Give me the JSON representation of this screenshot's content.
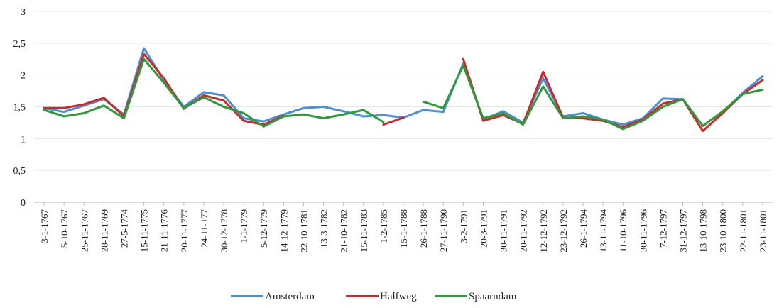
{
  "chart_data": {
    "type": "line",
    "title": "",
    "xlabel": "",
    "ylabel": "",
    "ylim": [
      0,
      3
    ],
    "y_ticks": [
      "0",
      "0,5",
      "1",
      "1,5",
      "2",
      "2,5",
      "3"
    ],
    "y_tick_values": [
      0,
      0.5,
      1,
      1.5,
      2,
      2.5,
      3
    ],
    "grid": true,
    "legend_position": "bottom",
    "categories": [
      "3-1-1767",
      "5-10-1767",
      "25-11-1767",
      "28-11-1769",
      "27-5-1774",
      "15-11-1775",
      "21-11-1776",
      "20-11-1777",
      "24-11-177",
      "30-12-1778",
      "1-1-1779",
      "5-12-1779",
      "14-12-1779",
      "22-10-1781",
      "13-3-1782",
      "21-10-1782",
      "15-11-1783",
      "1-2-1785",
      "15-1-1788",
      "26-1-1788",
      "27-11-1790",
      "3-2-1791",
      "20-3-1791",
      "30-11-1791",
      "20-11-1792",
      "12-12-1792",
      "23-12-1792",
      "26-1-1794",
      "13-11-1794",
      "11-10-1796",
      "30-11-1796",
      "7-12-1797",
      "31-12-1797",
      "13-10-1798",
      "23-10-1800",
      "22-11-1801",
      "23-11-1801"
    ],
    "series": [
      {
        "name": "Amsterdam",
        "color": "#4a8fd6",
        "values": [
          1.48,
          1.42,
          1.52,
          1.62,
          1.38,
          2.42,
          1.92,
          1.5,
          1.73,
          1.68,
          1.32,
          1.27,
          1.38,
          1.48,
          1.5,
          1.43,
          1.35,
          1.37,
          1.33,
          1.45,
          1.42,
          2.18,
          1.3,
          1.43,
          1.25,
          1.95,
          1.35,
          1.4,
          1.3,
          1.22,
          1.32,
          1.63,
          1.62,
          1.2,
          1.42,
          1.72,
          1.98
        ]
      },
      {
        "name": "Halfweg",
        "color": "#cc2a2a",
        "values": [
          1.48,
          1.48,
          1.54,
          1.64,
          1.35,
          2.33,
          1.95,
          1.47,
          1.68,
          1.6,
          1.28,
          1.22,
          1.36,
          null,
          null,
          null,
          null,
          1.22,
          1.33,
          null,
          null,
          2.25,
          1.28,
          1.37,
          1.23,
          2.05,
          1.33,
          1.32,
          1.28,
          1.18,
          1.3,
          1.55,
          1.62,
          1.12,
          1.4,
          1.7,
          1.92
        ]
      },
      {
        "name": "Spaarndam",
        "color": "#2f9a3a",
        "values": [
          1.45,
          1.35,
          1.4,
          1.52,
          1.32,
          2.25,
          1.88,
          1.48,
          1.65,
          1.5,
          1.4,
          1.19,
          1.35,
          1.38,
          1.32,
          1.38,
          1.45,
          1.26,
          null,
          1.58,
          1.48,
          2.15,
          1.32,
          1.4,
          1.22,
          1.82,
          1.32,
          1.35,
          1.3,
          1.15,
          1.28,
          1.5,
          1.62,
          1.2,
          1.43,
          1.7,
          1.77
        ]
      }
    ]
  }
}
